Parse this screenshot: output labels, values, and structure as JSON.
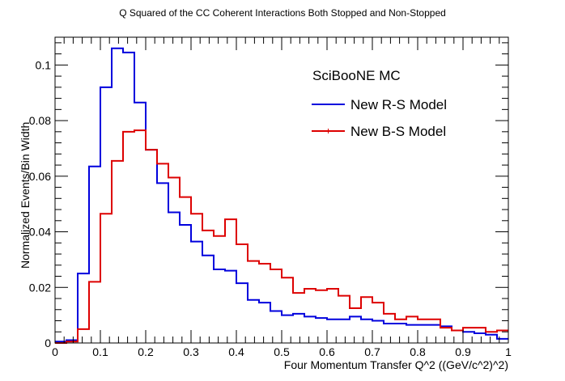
{
  "chart_data": {
    "type": "line",
    "title": "Q Squared of the CC Coherent Interactions Both Stopped and Non-Stopped",
    "xlabel": "Four Momentum Transfer Q^2 ((GeV/c^2)^2)",
    "ylabel": "Normalized Events/Bin Width",
    "xlim": [
      0,
      1
    ],
    "ylim": [
      0,
      0.11
    ],
    "x_ticks": [
      0,
      0.1,
      0.2,
      0.3,
      0.4,
      0.5,
      0.6,
      0.7,
      0.8,
      0.9,
      1
    ],
    "x_tick_labels": [
      "0",
      "0.1",
      "0.2",
      "0.3",
      "0.4",
      "0.5",
      "0.6",
      "0.7",
      "0.8",
      "0.9",
      "1"
    ],
    "y_ticks": [
      0,
      0.02,
      0.04,
      0.06,
      0.08,
      0.1
    ],
    "y_tick_labels": [
      "0",
      "0.02",
      "0.04",
      "0.06",
      "0.08",
      "0.1"
    ],
    "bin_width": 0.025,
    "legend_header": "SciBooNE MC",
    "legend_position": "top-right",
    "series": [
      {
        "name": "New R-S Model",
        "color": "#0000dd",
        "values": [
          0.0005,
          0.001,
          0.025,
          0.0635,
          0.092,
          0.106,
          0.1045,
          0.0865,
          0.0695,
          0.0575,
          0.047,
          0.0425,
          0.0365,
          0.0315,
          0.0265,
          0.026,
          0.0215,
          0.0155,
          0.0145,
          0.0115,
          0.01,
          0.0105,
          0.0095,
          0.009,
          0.0085,
          0.0085,
          0.0095,
          0.0085,
          0.008,
          0.007,
          0.007,
          0.0065,
          0.0065,
          0.0065,
          0.006,
          0.0045,
          0.004,
          0.0035,
          0.003,
          0.0015
        ]
      },
      {
        "name": "New B-S Model",
        "color": "#dd0000",
        "values": [
          0.0,
          0.0005,
          0.005,
          0.022,
          0.0465,
          0.0655,
          0.076,
          0.0765,
          0.0695,
          0.0645,
          0.0595,
          0.0525,
          0.0465,
          0.0405,
          0.0385,
          0.0445,
          0.0355,
          0.0295,
          0.0285,
          0.0265,
          0.0235,
          0.018,
          0.0195,
          0.019,
          0.0195,
          0.017,
          0.0125,
          0.0165,
          0.0145,
          0.0105,
          0.0085,
          0.0095,
          0.0085,
          0.0085,
          0.0055,
          0.0045,
          0.0055,
          0.0055,
          0.004,
          0.0045
        ]
      }
    ]
  }
}
